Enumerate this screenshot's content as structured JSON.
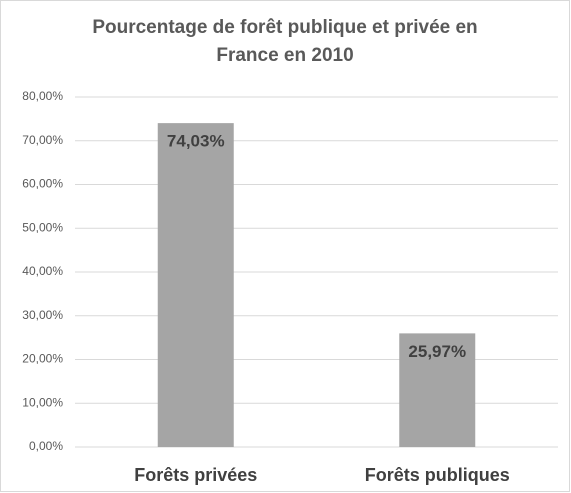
{
  "chart_data": {
    "type": "bar",
    "title": "Pourcentage de forêt publique et privée en France en 2010",
    "categories": [
      "Forêts privées",
      "Forêts publiques"
    ],
    "values": [
      74.03,
      25.97
    ],
    "value_labels": [
      "74,03%",
      "25,97%"
    ],
    "color": "#a5a5a5",
    "ylim": [
      0,
      80
    ],
    "yticks": [
      {
        "value": 0,
        "label": "0,00%"
      },
      {
        "value": 10,
        "label": "10,00%"
      },
      {
        "value": 20,
        "label": "20,00%"
      },
      {
        "value": 30,
        "label": "30,00%"
      },
      {
        "value": 40,
        "label": "40,00%"
      },
      {
        "value": 50,
        "label": "50,00%"
      },
      {
        "value": 60,
        "label": "60,00%"
      },
      {
        "value": 70,
        "label": "70,00%"
      },
      {
        "value": 80,
        "label": "80,00%"
      }
    ],
    "grid": true
  }
}
